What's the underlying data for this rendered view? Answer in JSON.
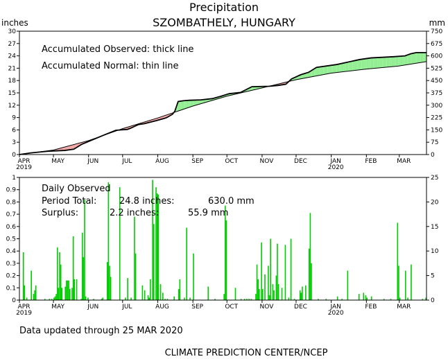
{
  "title": "Precipitation",
  "subtitle": "SZOMBATHELY, HUNGARY",
  "updated": "Data updated through 25 MAR 2020",
  "footer": "CLIMATE PREDICTION CENTER/NCEP",
  "colors": {
    "surplus": "#90ee90",
    "deficit": "#f4a6a6",
    "daily_bar": "#00cc00",
    "line": "#000000"
  },
  "chart_data": [
    {
      "type": "area",
      "ylabel_left": "inches",
      "ylabel_right": "mm",
      "ylim": [
        0,
        30
      ],
      "yticks_left": [
        "0",
        "3",
        "6",
        "9",
        "12",
        "15",
        "18",
        "21",
        "24",
        "27",
        "30"
      ],
      "yticks_right": [
        "0",
        "75",
        "150",
        "225",
        "300",
        "375",
        "450",
        "525",
        "600",
        "675",
        "750"
      ],
      "month_labels": [
        "APR",
        "MAY",
        "JUN",
        "JUL",
        "AUG",
        "SEP",
        "OCT",
        "NOV",
        "DEC",
        "JAN",
        "FEB",
        "MAR"
      ],
      "year_labels": [
        {
          "month": "APR",
          "text": "2019"
        },
        {
          "month": "JAN",
          "text": "2020"
        }
      ],
      "annotations": [
        "Accumulated Observed: thick line",
        "Accumulated Normal: thin line"
      ],
      "day_count": 359,
      "observed": [
        [
          0,
          0
        ],
        [
          10,
          0.4
        ],
        [
          25,
          0.8
        ],
        [
          40,
          1.0
        ],
        [
          48,
          1.3
        ],
        [
          55,
          2.5
        ],
        [
          62,
          3.3
        ],
        [
          75,
          4.8
        ],
        [
          85,
          5.9
        ],
        [
          90,
          6.0
        ],
        [
          95,
          6.1
        ],
        [
          98,
          6.4
        ],
        [
          105,
          7.3
        ],
        [
          110,
          7.5
        ],
        [
          120,
          8.2
        ],
        [
          128,
          8.8
        ],
        [
          130,
          9.0
        ],
        [
          135,
          9.8
        ],
        [
          137,
          10.5
        ],
        [
          140,
          12.9
        ],
        [
          145,
          13.1
        ],
        [
          150,
          13.2
        ],
        [
          160,
          13.3
        ],
        [
          170,
          13.6
        ],
        [
          178,
          14.2
        ],
        [
          185,
          14.8
        ],
        [
          195,
          15.1
        ],
        [
          205,
          16.5
        ],
        [
          220,
          16.6
        ],
        [
          228,
          16.8
        ],
        [
          235,
          17.1
        ],
        [
          240,
          18.4
        ],
        [
          248,
          19.4
        ],
        [
          255,
          20.0
        ],
        [
          262,
          21.2
        ],
        [
          280,
          21.9
        ],
        [
          300,
          23.1
        ],
        [
          310,
          23.5
        ],
        [
          330,
          23.8
        ],
        [
          340,
          24.0
        ],
        [
          345,
          24.5
        ],
        [
          350,
          24.8
        ],
        [
          359,
          24.8
        ]
      ],
      "normal": [
        [
          0,
          0
        ],
        [
          30,
          1.1
        ],
        [
          61,
          3.4
        ],
        [
          91,
          6.3
        ],
        [
          122,
          8.9
        ],
        [
          153,
          11.8
        ],
        [
          183,
          14.2
        ],
        [
          214,
          16.2
        ],
        [
          244,
          18.2
        ],
        [
          275,
          19.8
        ],
        [
          306,
          20.8
        ],
        [
          334,
          21.5
        ],
        [
          359,
          22.6
        ]
      ]
    },
    {
      "type": "bar",
      "ylabel_left": "",
      "ylabel_right": "",
      "ylim": [
        0,
        1
      ],
      "yticks_left": [
        "0",
        "0.1",
        "0.2",
        "0.3",
        "0.4",
        "0.5",
        "0.6",
        "0.7",
        "0.8",
        "0.9",
        "1"
      ],
      "yticks_right": [
        "0",
        "5",
        "10",
        "15",
        "20",
        "25"
      ],
      "month_labels": [
        "APR",
        "MAY",
        "JUN",
        "JUL",
        "AUG",
        "SEP",
        "OCT",
        "NOV",
        "DEC",
        "JAN",
        "FEB",
        "MAR"
      ],
      "year_labels": [
        {
          "month": "APR",
          "text": "2019"
        },
        {
          "month": "JAN",
          "text": "2020"
        }
      ],
      "annotation_title": "Daily Observed",
      "annotation_lines": [
        {
          "label": "Period Total:",
          "inches": "24.8 inches:",
          "mm": "630.0 mm"
        },
        {
          "label": "Surplus:",
          "inches": "2.2 inches:",
          "mm": "55.9 mm"
        }
      ],
      "bars": [
        [
          3,
          0.39
        ],
        [
          4,
          0.12
        ],
        [
          6,
          0.02
        ],
        [
          10,
          0.24
        ],
        [
          12,
          0.05
        ],
        [
          13,
          0.08
        ],
        [
          14,
          0.12
        ],
        [
          22,
          0.01
        ],
        [
          26,
          0.01
        ],
        [
          28,
          0.01
        ],
        [
          30,
          0.02
        ],
        [
          31,
          0.03
        ],
        [
          32,
          0.05
        ],
        [
          33,
          0.43
        ],
        [
          34,
          0.1
        ],
        [
          35,
          0.39
        ],
        [
          36,
          0.29
        ],
        [
          37,
          0.1
        ],
        [
          40,
          0.11
        ],
        [
          41,
          0.16
        ],
        [
          42,
          0.16
        ],
        [
          43,
          0.16
        ],
        [
          44,
          0.09
        ],
        [
          46,
          0.1
        ],
        [
          47,
          0.52
        ],
        [
          48,
          0.17
        ],
        [
          50,
          0.17
        ],
        [
          54,
          0.01
        ],
        [
          55,
          0.55
        ],
        [
          56,
          0.35
        ],
        [
          57,
          0.82
        ],
        [
          58,
          0.03
        ],
        [
          60,
          0.02
        ],
        [
          65,
          0.01
        ],
        [
          72,
          0.01
        ],
        [
          73,
          0.02
        ],
        [
          77,
          0.31
        ],
        [
          78,
          0.96
        ],
        [
          79,
          0.28
        ],
        [
          80,
          0.19
        ],
        [
          88,
          0.92
        ],
        [
          93,
          0.02
        ],
        [
          95,
          0.18
        ],
        [
          98,
          0.02
        ],
        [
          101,
          0.68
        ],
        [
          102,
          0.38
        ],
        [
          108,
          0.12
        ],
        [
          110,
          0.08
        ],
        [
          113,
          0.04
        ],
        [
          114,
          0.02
        ],
        [
          115,
          0.17
        ],
        [
          117,
          0.98
        ],
        [
          118,
          0.62
        ],
        [
          120,
          0.92
        ],
        [
          121,
          0.87
        ],
        [
          122,
          0.86
        ],
        [
          124,
          0.13
        ],
        [
          126,
          0.06
        ],
        [
          128,
          0.01
        ],
        [
          130,
          0.01
        ],
        [
          136,
          0.03
        ],
        [
          140,
          0.09
        ],
        [
          141,
          0.17
        ],
        [
          145,
          0.02
        ],
        [
          147,
          0.59
        ],
        [
          150,
          0.02
        ],
        [
          153,
          0.38
        ],
        [
          166,
          0.11
        ],
        [
          172,
          0.01
        ],
        [
          180,
          0.05
        ],
        [
          181,
          0.77
        ],
        [
          182,
          0.65
        ],
        [
          190,
          0.1
        ],
        [
          195,
          0.01
        ],
        [
          198,
          0.01
        ],
        [
          200,
          0.01
        ],
        [
          202,
          0.01
        ],
        [
          204,
          0.01
        ],
        [
          208,
          0.05
        ],
        [
          209,
          0.29
        ],
        [
          210,
          0.17
        ],
        [
          211,
          0.09
        ],
        [
          213,
          0.47
        ],
        [
          214,
          0.09
        ],
        [
          216,
          0.21
        ],
        [
          219,
          0.28
        ],
        [
          220,
          0.04
        ],
        [
          221,
          0.5
        ],
        [
          223,
          0.13
        ],
        [
          224,
          0.08
        ],
        [
          226,
          0.2
        ],
        [
          227,
          0.46
        ],
        [
          228,
          0.13
        ],
        [
          231,
          0.1
        ],
        [
          234,
          0.45
        ],
        [
          237,
          0.02
        ],
        [
          239,
          0.5
        ],
        [
          242,
          0.01
        ],
        [
          247,
          0.08
        ],
        [
          248,
          0.06
        ],
        [
          249,
          0.11
        ],
        [
          252,
          0.12
        ],
        [
          255,
          0.42
        ],
        [
          256,
          0.71
        ],
        [
          257,
          0.3
        ],
        [
          263,
          0.01
        ],
        [
          270,
          0.01
        ],
        [
          280,
          0.03
        ],
        [
          284,
          0.01
        ],
        [
          289,
          0.24
        ],
        [
          299,
          0.05
        ],
        [
          303,
          0.06
        ],
        [
          305,
          0.04
        ],
        [
          306,
          0.02
        ],
        [
          310,
          0.03
        ],
        [
          321,
          0.01
        ],
        [
          327,
          0.01
        ],
        [
          333,
          0.63
        ],
        [
          334,
          0.28
        ],
        [
          335,
          0.02
        ],
        [
          340,
          0.24
        ],
        [
          342,
          0.02
        ],
        [
          345,
          0.29
        ],
        [
          355,
          0.01
        ],
        [
          358,
          0.02
        ]
      ]
    }
  ]
}
